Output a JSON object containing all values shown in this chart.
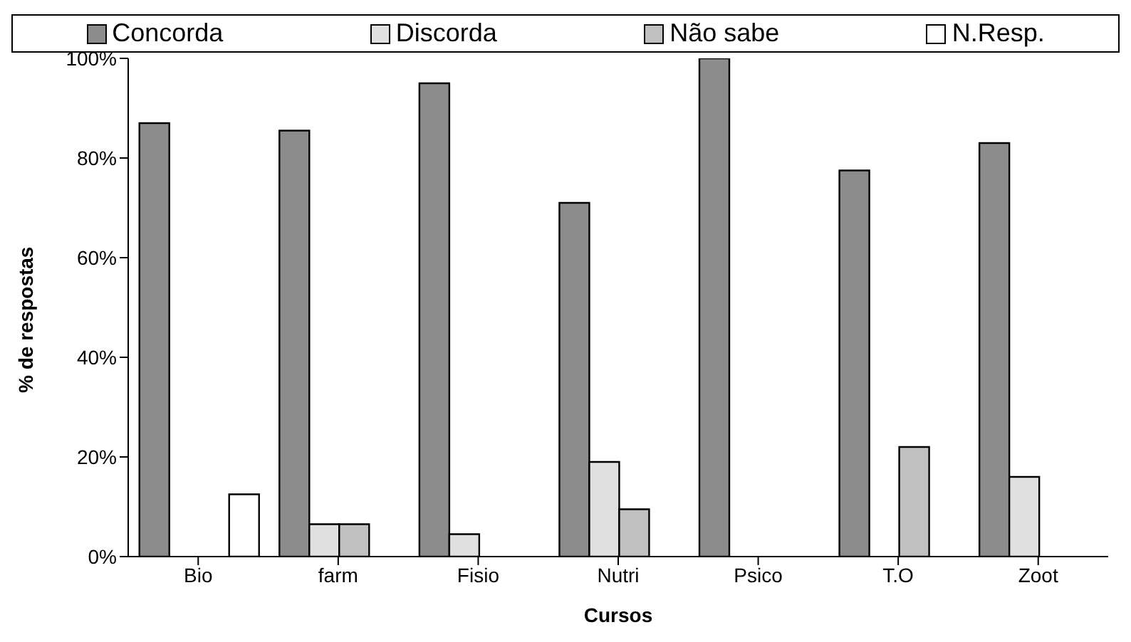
{
  "chart_data": {
    "type": "bar",
    "xlabel": "Cursos",
    "ylabel": "% de respostas",
    "categories": [
      "Bio",
      "farm",
      "Fisio",
      "Nutri",
      "Psico",
      "T.O",
      "Zoot"
    ],
    "series": [
      {
        "name": "Concorda",
        "color": "#8c8c8c",
        "values": [
          87,
          85.5,
          95,
          71,
          100,
          77.5,
          83
        ]
      },
      {
        "name": "Discorda",
        "color": "#e0e0e0",
        "values": [
          0,
          6.5,
          4.5,
          19,
          0,
          0,
          16
        ]
      },
      {
        "name": "Não sabe",
        "color": "#c0c0c0",
        "values": [
          0,
          6.5,
          0,
          9.5,
          0,
          22,
          0
        ]
      },
      {
        "name": "N.Resp.",
        "color": "#ffffff",
        "values": [
          12.5,
          0,
          0,
          0,
          0,
          0,
          0
        ]
      }
    ],
    "ylim": [
      0,
      100
    ],
    "yticks": [
      {
        "value": 0,
        "label": "0%"
      },
      {
        "value": 20,
        "label": "20%"
      },
      {
        "value": 40,
        "label": "40%"
      },
      {
        "value": 60,
        "label": "60%"
      },
      {
        "value": 80,
        "label": "80%"
      },
      {
        "value": 100,
        "label": "100%"
      }
    ],
    "grid": false,
    "legend": "top"
  }
}
